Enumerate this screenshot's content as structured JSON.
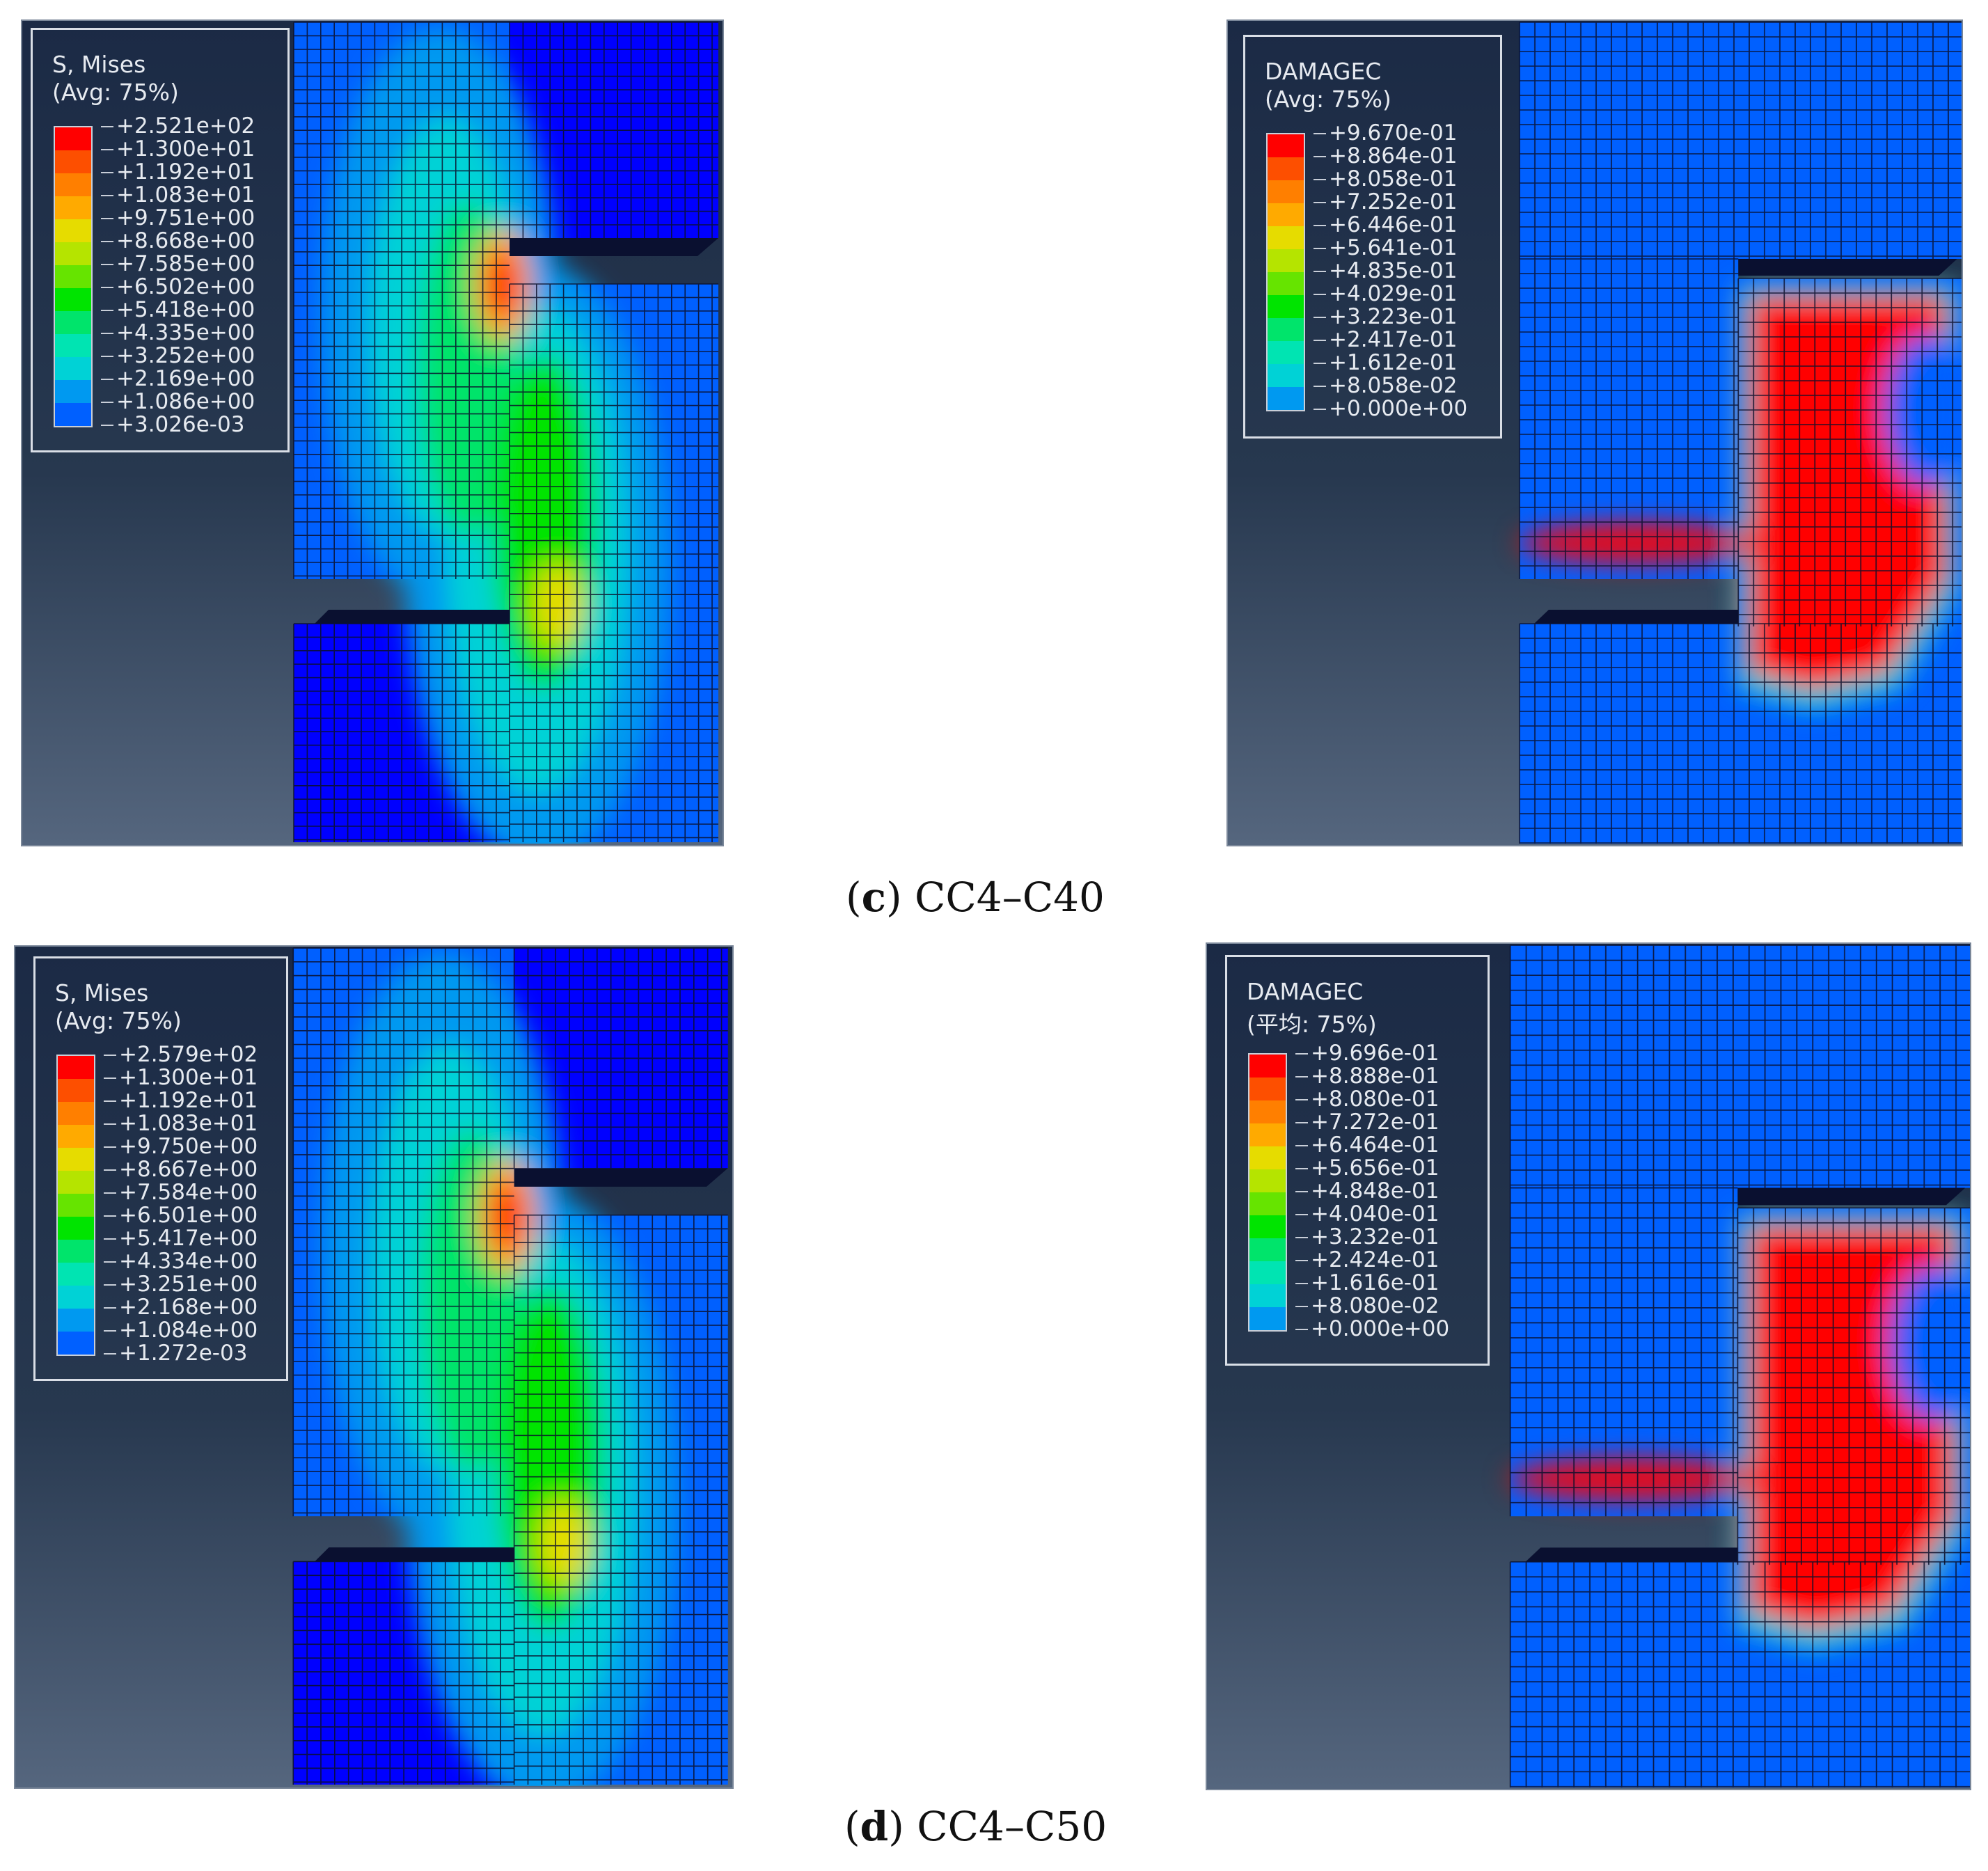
{
  "colors": [
    "#ff0000",
    "#fd4f00",
    "#ff7f00",
    "#ffaa00",
    "#e6dc00",
    "#b5e400",
    "#66e400",
    "#00e400",
    "#00e46b",
    "#00e4b2",
    "#00d2d6",
    "#0099f0",
    "#0060ff",
    "#0000ff"
  ],
  "panels": [
    {
      "id": "c-mises",
      "type": "mises",
      "legend": {
        "title": "S, Mises",
        "subtitle": "(Avg: 75%)",
        "values": [
          "+2.521e+02",
          "+1.300e+01",
          "+1.192e+01",
          "+1.083e+01",
          "+9.751e+00",
          "+8.668e+00",
          "+7.585e+00",
          "+6.502e+00",
          "+5.418e+00",
          "+4.335e+00",
          "+3.252e+00",
          "+2.169e+00",
          "+1.086e+00",
          "+3.026e-03"
        ]
      }
    },
    {
      "id": "c-damage",
      "type": "damage",
      "legend": {
        "title": "DAMAGEC",
        "subtitle": "(Avg: 75%)",
        "values": [
          "+9.670e-01",
          "+8.864e-01",
          "+8.058e-01",
          "+7.252e-01",
          "+6.446e-01",
          "+5.641e-01",
          "+4.835e-01",
          "+4.029e-01",
          "+3.223e-01",
          "+2.417e-01",
          "+1.612e-01",
          "+8.058e-02",
          "+0.000e+00"
        ]
      }
    },
    {
      "id": "d-mises",
      "type": "mises",
      "legend": {
        "title": "S, Mises",
        "subtitle": "(Avg: 75%)",
        "values": [
          "+2.579e+02",
          "+1.300e+01",
          "+1.192e+01",
          "+1.083e+01",
          "+9.750e+00",
          "+8.667e+00",
          "+7.584e+00",
          "+6.501e+00",
          "+5.417e+00",
          "+4.334e+00",
          "+3.251e+00",
          "+2.168e+00",
          "+1.084e+00",
          "+1.272e-03"
        ]
      }
    },
    {
      "id": "d-damage",
      "type": "damage",
      "legend": {
        "title": "DAMAGEC",
        "subtitle": "(平均: 75%)",
        "values": [
          "+9.696e-01",
          "+8.888e-01",
          "+8.080e-01",
          "+7.272e-01",
          "+6.464e-01",
          "+5.656e-01",
          "+4.848e-01",
          "+4.040e-01",
          "+3.232e-01",
          "+2.424e-01",
          "+1.616e-01",
          "+8.080e-02",
          "+0.000e+00"
        ]
      }
    }
  ],
  "captions": [
    {
      "letter": "c",
      "text": "CC4–C40"
    },
    {
      "letter": "d",
      "text": "CC4–C50"
    }
  ]
}
